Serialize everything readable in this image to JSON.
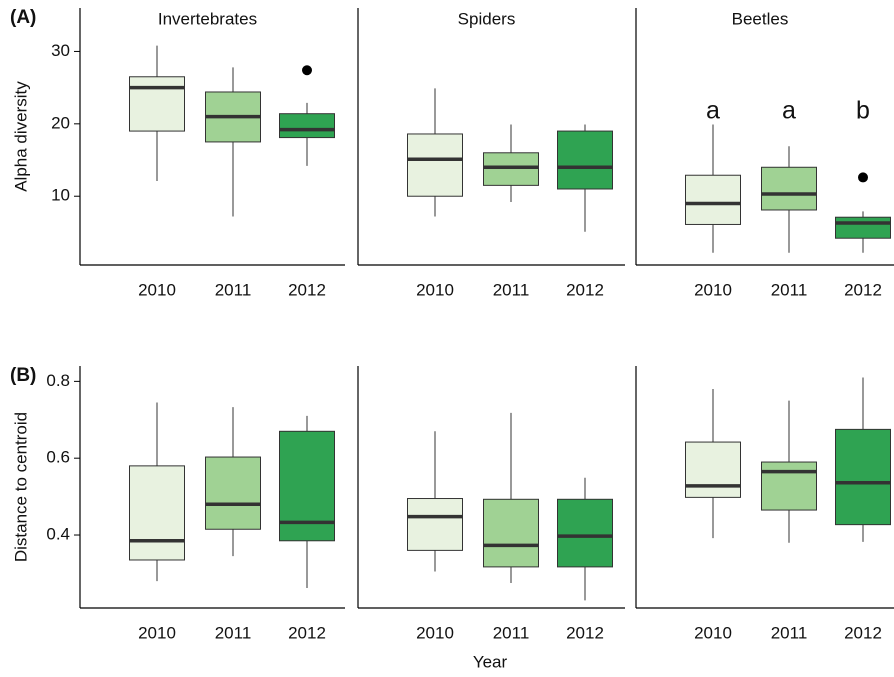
{
  "chart_data": [
    {
      "type": "box",
      "panel_label": "(A)",
      "title": "Invertebrates",
      "ylabel": "Alpha diversity",
      "categories": [
        "2010",
        "2011",
        "2012"
      ],
      "colors": [
        "#e8f2e0",
        "#a0d294",
        "#2fa352"
      ],
      "ylim": [
        0.5,
        36
      ],
      "yticks": [
        10,
        20,
        30
      ],
      "boxes": [
        {
          "min": 12.1,
          "q1": 19,
          "median": 25,
          "q3": 26.5,
          "max": 30.8,
          "outliers": []
        },
        {
          "min": 7.2,
          "q1": 17.5,
          "median": 21,
          "q3": 24.4,
          "max": 27.8,
          "outliers": []
        },
        {
          "min": 14.2,
          "q1": 18.1,
          "median": 19.2,
          "q3": 21.4,
          "max": 22.9,
          "outliers": [
            27.4
          ]
        }
      ]
    },
    {
      "type": "box",
      "title": "Spiders",
      "categories": [
        "2010",
        "2011",
        "2012"
      ],
      "colors": [
        "#e8f2e0",
        "#a0d294",
        "#2fa352"
      ],
      "ylim": [
        0.5,
        36
      ],
      "boxes": [
        {
          "min": 7.2,
          "q1": 10,
          "median": 15.1,
          "q3": 18.6,
          "max": 24.9,
          "outliers": []
        },
        {
          "min": 9.2,
          "q1": 11.5,
          "median": 14,
          "q3": 16,
          "max": 19.9,
          "outliers": []
        },
        {
          "min": 5.1,
          "q1": 11,
          "median": 14,
          "q3": 19,
          "max": 19.9,
          "outliers": []
        }
      ]
    },
    {
      "type": "box",
      "title": "Beetles",
      "categories": [
        "2010",
        "2011",
        "2012"
      ],
      "colors": [
        "#e8f2e0",
        "#a0d294",
        "#2fa352"
      ],
      "ylim": [
        0.5,
        36
      ],
      "annotations": [
        "a",
        "a",
        "b"
      ],
      "boxes": [
        {
          "min": 2.2,
          "q1": 6.1,
          "median": 9,
          "q3": 12.9,
          "max": 19.9,
          "outliers": []
        },
        {
          "min": 2.2,
          "q1": 8.1,
          "median": 10.3,
          "q3": 14,
          "max": 16.9,
          "outliers": []
        },
        {
          "min": 2.2,
          "q1": 4.2,
          "median": 6.3,
          "q3": 7.1,
          "max": 7.9,
          "outliers": [
            12.6
          ]
        }
      ]
    },
    {
      "type": "box",
      "panel_label": "(B)",
      "ylabel": "Distance to centroid",
      "categories": [
        "2010",
        "2011",
        "2012"
      ],
      "colors": [
        "#e8f2e0",
        "#a0d294",
        "#2fa352"
      ],
      "ylim": [
        0.21,
        0.84
      ],
      "yticks": [
        0.4,
        0.6,
        0.8
      ],
      "boxes": [
        {
          "min": 0.28,
          "q1": 0.335,
          "median": 0.385,
          "q3": 0.58,
          "max": 0.745,
          "outliers": []
        },
        {
          "min": 0.345,
          "q1": 0.415,
          "median": 0.48,
          "q3": 0.603,
          "max": 0.733,
          "outliers": []
        },
        {
          "min": 0.262,
          "q1": 0.385,
          "median": 0.433,
          "q3": 0.67,
          "max": 0.71,
          "outliers": []
        }
      ]
    },
    {
      "type": "box",
      "xlabel": "Year",
      "categories": [
        "2010",
        "2011",
        "2012"
      ],
      "colors": [
        "#e8f2e0",
        "#a0d294",
        "#2fa352"
      ],
      "ylim": [
        0.21,
        0.84
      ],
      "boxes": [
        {
          "min": 0.305,
          "q1": 0.36,
          "median": 0.448,
          "q3": 0.495,
          "max": 0.67,
          "outliers": []
        },
        {
          "min": 0.275,
          "q1": 0.317,
          "median": 0.373,
          "q3": 0.493,
          "max": 0.718,
          "outliers": []
        },
        {
          "min": 0.23,
          "q1": 0.317,
          "median": 0.397,
          "q3": 0.493,
          "max": 0.549,
          "outliers": []
        }
      ]
    },
    {
      "type": "box",
      "categories": [
        "2010",
        "2011",
        "2012"
      ],
      "colors": [
        "#e8f2e0",
        "#a0d294",
        "#2fa352"
      ],
      "ylim": [
        0.21,
        0.84
      ],
      "boxes": [
        {
          "min": 0.392,
          "q1": 0.498,
          "median": 0.528,
          "q3": 0.642,
          "max": 0.78,
          "outliers": []
        },
        {
          "min": 0.38,
          "q1": 0.465,
          "median": 0.565,
          "q3": 0.59,
          "max": 0.75,
          "outliers": []
        },
        {
          "min": 0.382,
          "q1": 0.427,
          "median": 0.536,
          "q3": 0.675,
          "max": 0.81,
          "outliers": []
        }
      ]
    }
  ]
}
